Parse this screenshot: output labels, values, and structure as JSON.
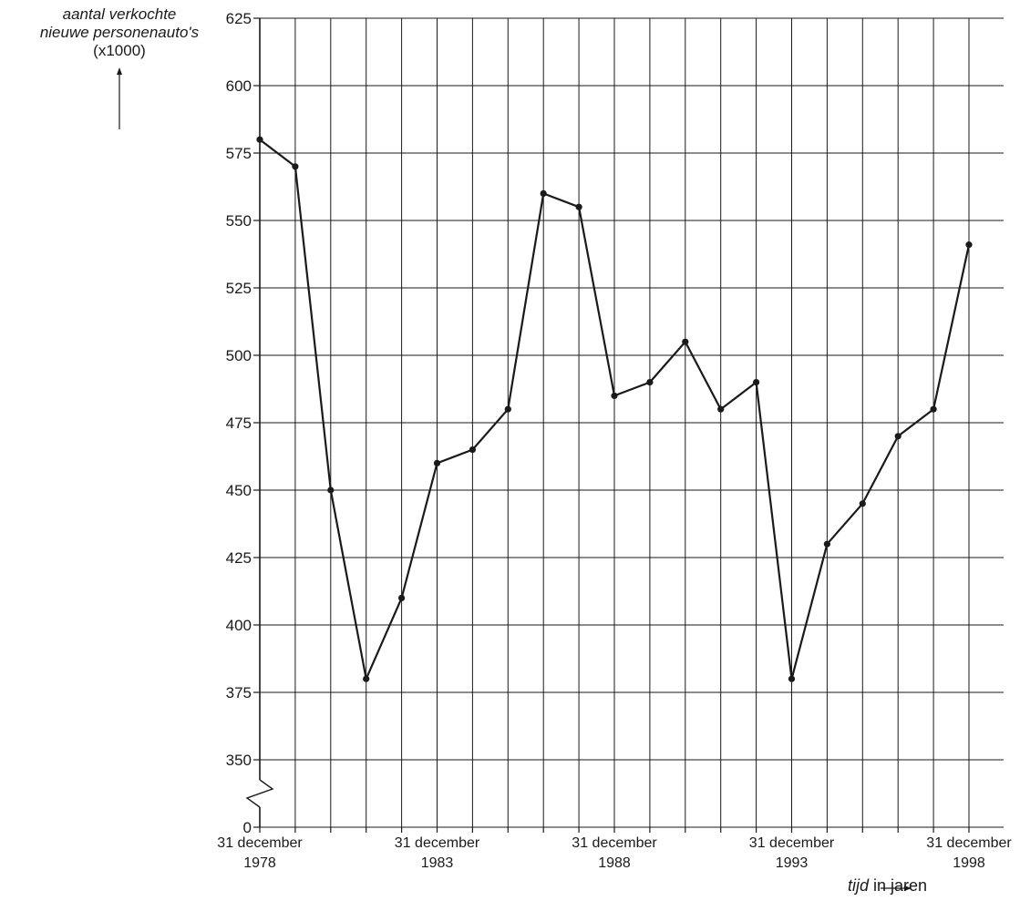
{
  "chart_data": {
    "type": "line",
    "ylabel_line1": "aantal verkochte",
    "ylabel_line2": "nieuwe personenauto's",
    "ylabel_line3": "(x1000)",
    "xlabel_italic": "tijd",
    "xlabel_rest": " in jaren",
    "ylim": [
      350,
      625
    ],
    "y_ticks": [
      625,
      600,
      575,
      550,
      525,
      500,
      475,
      450,
      425,
      400,
      375,
      350,
      0
    ],
    "y_axis_break": true,
    "grid": true,
    "x_tick_labels": [
      {
        "year": 1978,
        "line1": "31 december",
        "line2": "1978"
      },
      {
        "year": 1983,
        "line1": "31 december",
        "line2": "1983"
      },
      {
        "year": 1988,
        "line1": "31 december",
        "line2": "1988"
      },
      {
        "year": 1993,
        "line1": "31 december",
        "line2": "1993"
      },
      {
        "year": 1998,
        "line1": "31 december",
        "line2": "1998"
      }
    ],
    "x": [
      1978,
      1979,
      1980,
      1981,
      1982,
      1983,
      1984,
      1985,
      1986,
      1987,
      1988,
      1989,
      1990,
      1991,
      1992,
      1993,
      1994,
      1995,
      1996,
      1997,
      1998
    ],
    "values": [
      580,
      570,
      450,
      380,
      410,
      460,
      465,
      480,
      560,
      555,
      485,
      490,
      505,
      480,
      490,
      380,
      430,
      445,
      470,
      480,
      541
    ],
    "colors": {
      "line": "#1a1a1a",
      "grid": "#1a1a1a"
    }
  }
}
